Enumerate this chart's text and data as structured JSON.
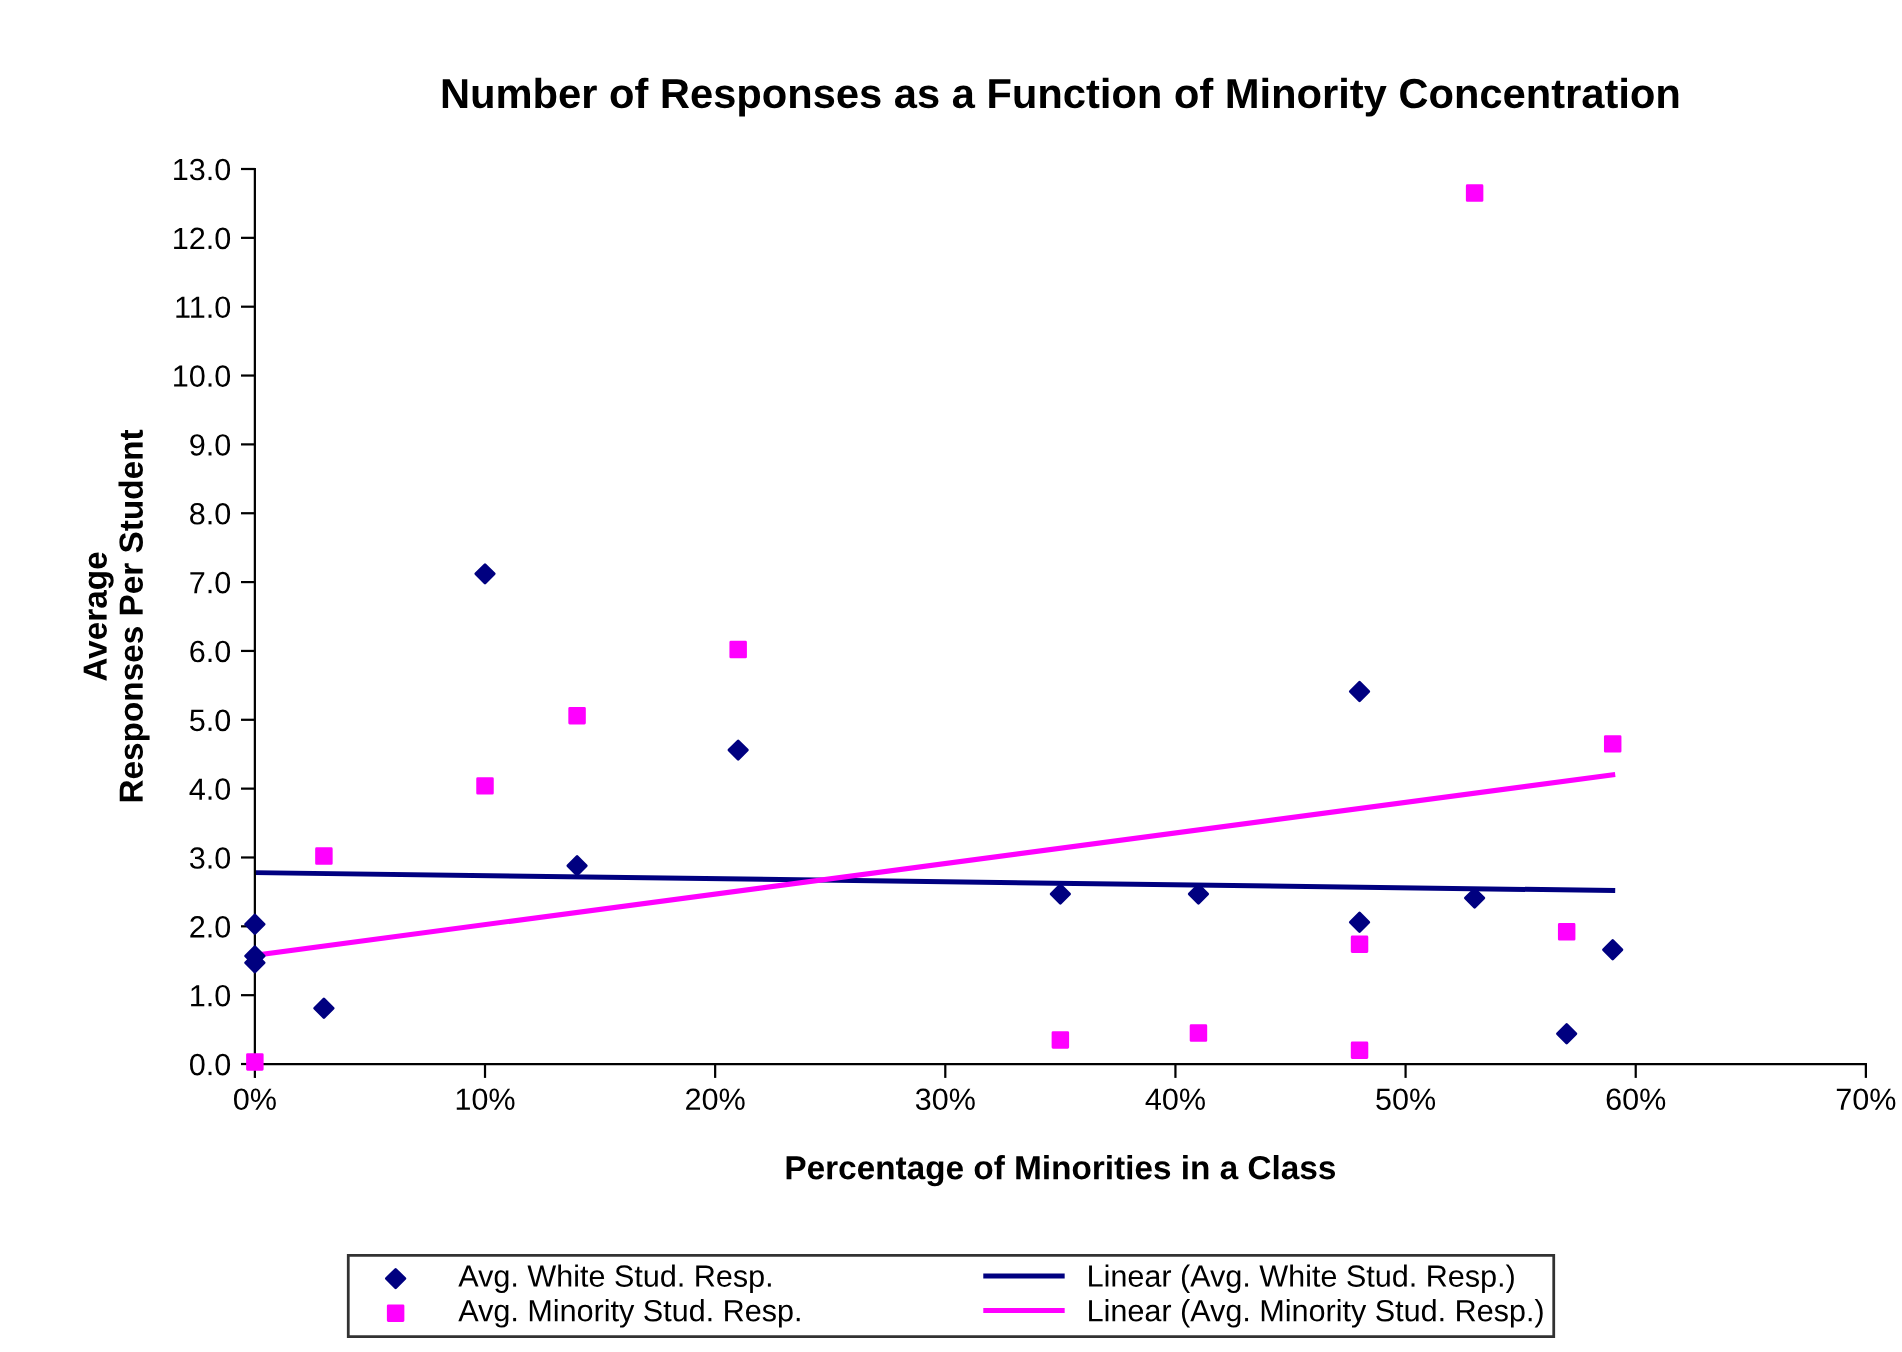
{
  "chart_data": {
    "type": "scatter",
    "title": "Number of Responses as a Function of Minority Concentration",
    "xlabel": "Percentage of Minorities in a Class",
    "ylabel": "Average\nResponses Per Student",
    "xlim": [
      0,
      70
    ],
    "xticks": [
      {
        "value": 0,
        "label": "0%"
      },
      {
        "value": 10,
        "label": "10%"
      },
      {
        "value": 20,
        "label": "20%"
      },
      {
        "value": 30,
        "label": "30%"
      },
      {
        "value": 40,
        "label": "40%"
      },
      {
        "value": 50,
        "label": "50%"
      },
      {
        "value": 60,
        "label": "60%"
      },
      {
        "value": 70,
        "label": "70%"
      }
    ],
    "ylim": [
      0,
      13
    ],
    "yticks": [
      {
        "value": 0,
        "label": "0.0"
      },
      {
        "value": 1,
        "label": "1.0"
      },
      {
        "value": 2,
        "label": "2.0"
      },
      {
        "value": 3,
        "label": "3.0"
      },
      {
        "value": 4,
        "label": "4.0"
      },
      {
        "value": 5,
        "label": "5.0"
      },
      {
        "value": 6,
        "label": "6.0"
      },
      {
        "value": 7,
        "label": "7.0"
      },
      {
        "value": 8,
        "label": "8.0"
      },
      {
        "value": 9,
        "label": "9.0"
      },
      {
        "value": 10,
        "label": "10.0"
      },
      {
        "value": 11,
        "label": "11.0"
      },
      {
        "value": 12,
        "label": "12.0"
      },
      {
        "value": 13,
        "label": "13.0"
      }
    ],
    "grid": false,
    "legend": "bottom",
    "series": [
      {
        "name": "Avg. White Stud. Resp.",
        "marker": "diamond",
        "color": "#000080",
        "x": [
          0,
          0,
          0,
          3,
          10,
          14,
          21,
          35,
          41,
          48,
          48,
          53,
          57,
          59
        ],
        "values": [
          2.03,
          1.57,
          1.47,
          0.81,
          7.12,
          2.88,
          4.56,
          2.47,
          2.47,
          5.41,
          2.06,
          2.41,
          0.44,
          1.66
        ]
      },
      {
        "name": "Avg. Minority Stud. Resp.",
        "marker": "square",
        "color": "#ff00ff",
        "x": [
          0,
          3,
          10,
          14,
          21,
          35,
          41,
          48,
          48,
          53,
          57,
          59
        ],
        "values": [
          0.03,
          3.02,
          4.04,
          5.06,
          6.02,
          0.35,
          0.45,
          1.74,
          0.2,
          12.65,
          1.92,
          4.65
        ]
      },
      {
        "name": "Linear (Avg. White Stud. Resp.)",
        "type": "line",
        "marker": "none",
        "line_style": "solid",
        "color": "#000080",
        "x": [
          0,
          59
        ],
        "values": [
          2.78,
          2.52
        ]
      },
      {
        "name": "Linear (Avg. Minority Stud. Resp.)",
        "type": "line",
        "marker": "none",
        "line_style": "solid",
        "color": "#ff00ff",
        "x": [
          0,
          59
        ],
        "values": [
          1.58,
          4.2
        ]
      }
    ]
  }
}
